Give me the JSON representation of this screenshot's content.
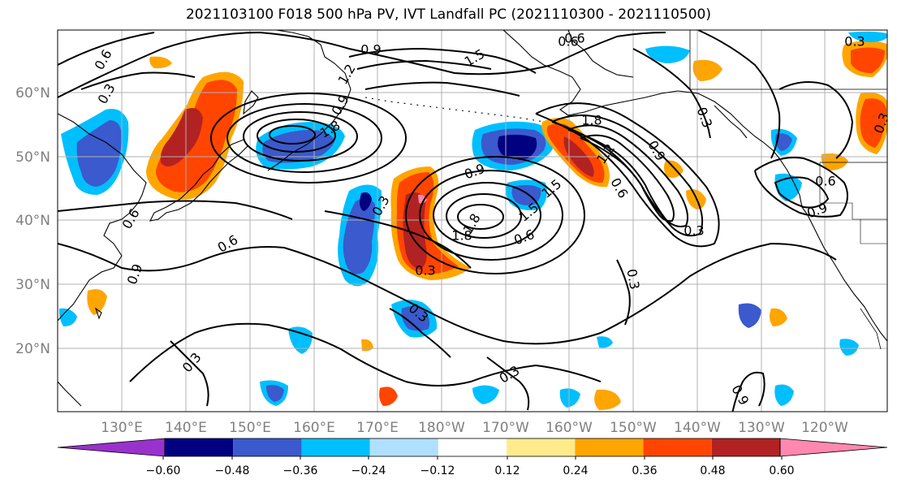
{
  "title": "2021103100 F018 500 hPa PV, IVT Landfall PC (2021110300 - 2021110500)",
  "latitude_labels": [
    "60°N",
    "50°N",
    "40°N",
    "30°N",
    "20°N"
  ],
  "longitude_labels": [
    "130°E",
    "140°E",
    "150°E",
    "160°E",
    "170°E",
    "180°W",
    "170°W",
    "160°W",
    "150°W",
    "140°W",
    "130°W",
    "120°W"
  ],
  "colorbar": {
    "ticks": [
      "−0.60",
      "−0.48",
      "−0.36",
      "−0.24",
      "−0.12",
      "0.12",
      "0.24",
      "0.36",
      "0.48",
      "0.60"
    ],
    "colors": [
      "#9932cc",
      "#000080",
      "#3a5acd",
      "#00bfff",
      "#b0e0ff",
      "#ffffff",
      "#ffeb8a",
      "#ffa500",
      "#ff4500",
      "#b22222",
      "#ff88b0"
    ]
  },
  "contour_labels": [
    "0.9",
    "0.6",
    "0.6",
    "1.5",
    "1.2",
    "0.3",
    "1.8",
    "0.9",
    "0.3",
    "1.8",
    "1.5",
    "0.9",
    "0.6",
    "0.3",
    "1.8",
    "0.6",
    "1.2",
    "0.9",
    "1.5",
    "0.9",
    "0.6",
    "0.3",
    "0.6",
    "0.3",
    "0.6",
    "0.9",
    "0.3",
    "0.3",
    "0.3",
    "0.3",
    "0.9",
    "0.3",
    "1.8",
    "0.3",
    "0.6"
  ],
  "colors": {
    "grid": "#b0b0b0",
    "coast": "#000000",
    "contour": "#000000"
  }
}
